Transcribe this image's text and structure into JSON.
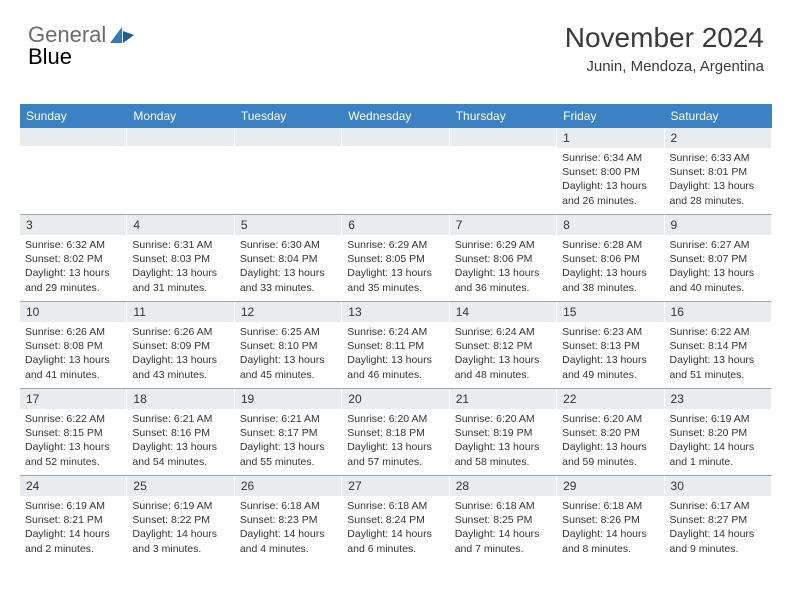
{
  "brand": {
    "part1": "General",
    "part2": "Blue"
  },
  "header": {
    "month_title": "November 2024",
    "location": "Junin, Mendoza, Argentina"
  },
  "colors": {
    "header_bg": "#3b82c4",
    "header_text": "#ffffff",
    "daynum_bg": "#e9ecef",
    "body_text": "#333333",
    "grid_border": "#9aa6b2",
    "brand_gray": "#6b6b6b",
    "brand_blue": "#2f7ab8"
  },
  "days_of_week": [
    "Sunday",
    "Monday",
    "Tuesday",
    "Wednesday",
    "Thursday",
    "Friday",
    "Saturday"
  ],
  "weeks": [
    [
      null,
      null,
      null,
      null,
      null,
      {
        "n": 1,
        "sr": "6:34 AM",
        "ss": "8:00 PM",
        "dh": 13,
        "dm": 26
      },
      {
        "n": 2,
        "sr": "6:33 AM",
        "ss": "8:01 PM",
        "dh": 13,
        "dm": 28
      }
    ],
    [
      {
        "n": 3,
        "sr": "6:32 AM",
        "ss": "8:02 PM",
        "dh": 13,
        "dm": 29
      },
      {
        "n": 4,
        "sr": "6:31 AM",
        "ss": "8:03 PM",
        "dh": 13,
        "dm": 31
      },
      {
        "n": 5,
        "sr": "6:30 AM",
        "ss": "8:04 PM",
        "dh": 13,
        "dm": 33
      },
      {
        "n": 6,
        "sr": "6:29 AM",
        "ss": "8:05 PM",
        "dh": 13,
        "dm": 35
      },
      {
        "n": 7,
        "sr": "6:29 AM",
        "ss": "8:06 PM",
        "dh": 13,
        "dm": 36
      },
      {
        "n": 8,
        "sr": "6:28 AM",
        "ss": "8:06 PM",
        "dh": 13,
        "dm": 38
      },
      {
        "n": 9,
        "sr": "6:27 AM",
        "ss": "8:07 PM",
        "dh": 13,
        "dm": 40
      }
    ],
    [
      {
        "n": 10,
        "sr": "6:26 AM",
        "ss": "8:08 PM",
        "dh": 13,
        "dm": 41
      },
      {
        "n": 11,
        "sr": "6:26 AM",
        "ss": "8:09 PM",
        "dh": 13,
        "dm": 43
      },
      {
        "n": 12,
        "sr": "6:25 AM",
        "ss": "8:10 PM",
        "dh": 13,
        "dm": 45
      },
      {
        "n": 13,
        "sr": "6:24 AM",
        "ss": "8:11 PM",
        "dh": 13,
        "dm": 46
      },
      {
        "n": 14,
        "sr": "6:24 AM",
        "ss": "8:12 PM",
        "dh": 13,
        "dm": 48
      },
      {
        "n": 15,
        "sr": "6:23 AM",
        "ss": "8:13 PM",
        "dh": 13,
        "dm": 49
      },
      {
        "n": 16,
        "sr": "6:22 AM",
        "ss": "8:14 PM",
        "dh": 13,
        "dm": 51
      }
    ],
    [
      {
        "n": 17,
        "sr": "6:22 AM",
        "ss": "8:15 PM",
        "dh": 13,
        "dm": 52
      },
      {
        "n": 18,
        "sr": "6:21 AM",
        "ss": "8:16 PM",
        "dh": 13,
        "dm": 54
      },
      {
        "n": 19,
        "sr": "6:21 AM",
        "ss": "8:17 PM",
        "dh": 13,
        "dm": 55
      },
      {
        "n": 20,
        "sr": "6:20 AM",
        "ss": "8:18 PM",
        "dh": 13,
        "dm": 57
      },
      {
        "n": 21,
        "sr": "6:20 AM",
        "ss": "8:19 PM",
        "dh": 13,
        "dm": 58
      },
      {
        "n": 22,
        "sr": "6:20 AM",
        "ss": "8:20 PM",
        "dh": 13,
        "dm": 59
      },
      {
        "n": 23,
        "sr": "6:19 AM",
        "ss": "8:20 PM",
        "dh": 14,
        "dm": 1
      }
    ],
    [
      {
        "n": 24,
        "sr": "6:19 AM",
        "ss": "8:21 PM",
        "dh": 14,
        "dm": 2
      },
      {
        "n": 25,
        "sr": "6:19 AM",
        "ss": "8:22 PM",
        "dh": 14,
        "dm": 3
      },
      {
        "n": 26,
        "sr": "6:18 AM",
        "ss": "8:23 PM",
        "dh": 14,
        "dm": 4
      },
      {
        "n": 27,
        "sr": "6:18 AM",
        "ss": "8:24 PM",
        "dh": 14,
        "dm": 6
      },
      {
        "n": 28,
        "sr": "6:18 AM",
        "ss": "8:25 PM",
        "dh": 14,
        "dm": 7
      },
      {
        "n": 29,
        "sr": "6:18 AM",
        "ss": "8:26 PM",
        "dh": 14,
        "dm": 8
      },
      {
        "n": 30,
        "sr": "6:17 AM",
        "ss": "8:27 PM",
        "dh": 14,
        "dm": 9
      }
    ]
  ],
  "labels": {
    "sunrise": "Sunrise:",
    "sunset": "Sunset:",
    "daylight": "Daylight:",
    "hours": "hours",
    "and": "and",
    "minute": "minute.",
    "minutes": "minutes."
  }
}
